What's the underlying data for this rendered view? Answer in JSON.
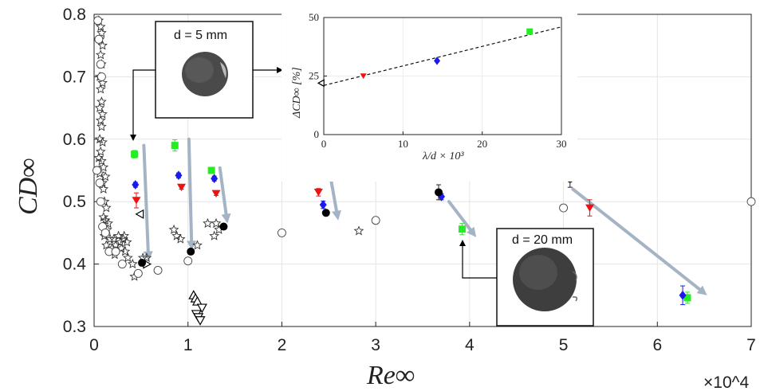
{
  "chart_data": [
    {
      "type": "scatter",
      "xlabel": "Re∞",
      "xscale_label": "×10^4",
      "ylabel": "CD∞",
      "xlim": [
        0,
        70000
      ],
      "ylim": [
        0.3,
        0.8
      ],
      "xticks": [
        0,
        10000,
        20000,
        30000,
        40000,
        50000,
        60000,
        70000
      ],
      "xtick_labels": [
        "0",
        "1",
        "2",
        "3",
        "4",
        "5",
        "6",
        "7"
      ],
      "yticks": [
        0.3,
        0.4,
        0.5,
        0.6,
        0.7,
        0.8
      ],
      "ytick_labels": [
        "0.3",
        "0.4",
        "0.5",
        "0.6",
        "0.7",
        "0.8"
      ],
      "grid": true,
      "colors": {
        "green": "#22ee22",
        "blue": "#1a1aee",
        "red": "#ee1111",
        "black": "#000000",
        "arrow": "#a4b4c4"
      },
      "series": [
        {
          "marker": "star",
          "points": [
            [
              500,
              0.79
            ],
            [
              700,
              0.78
            ],
            [
              800,
              0.77
            ],
            [
              600,
              0.76
            ],
            [
              900,
              0.75
            ],
            [
              700,
              0.735
            ],
            [
              800,
              0.72
            ],
            [
              600,
              0.7
            ],
            [
              900,
              0.69
            ],
            [
              700,
              0.68
            ],
            [
              800,
              0.66
            ],
            [
              600,
              0.65
            ],
            [
              900,
              0.64
            ],
            [
              700,
              0.63
            ],
            [
              800,
              0.62
            ],
            [
              600,
              0.6
            ],
            [
              900,
              0.595
            ],
            [
              700,
              0.58
            ],
            [
              500,
              0.57
            ],
            [
              800,
              0.565
            ],
            [
              1000,
              0.555
            ],
            [
              600,
              0.545
            ],
            [
              1200,
              0.54
            ],
            [
              900,
              0.53
            ],
            [
              1000,
              0.52
            ],
            [
              1100,
              0.5
            ],
            [
              1300,
              0.49
            ],
            [
              1000,
              0.475
            ],
            [
              1200,
              0.47
            ],
            [
              1500,
              0.465
            ],
            [
              1400,
              0.455
            ],
            [
              1100,
              0.445
            ],
            [
              1700,
              0.44
            ],
            [
              1300,
              0.43
            ],
            [
              2300,
              0.43
            ],
            [
              2100,
              0.44
            ],
            [
              2600,
              0.445
            ],
            [
              3100,
              0.44
            ],
            [
              2800,
              0.435
            ],
            [
              3200,
              0.445
            ],
            [
              3500,
              0.435
            ],
            [
              2900,
              0.425
            ],
            [
              3300,
              0.42
            ],
            [
              1900,
              0.425
            ],
            [
              3600,
              0.41
            ],
            [
              2200,
              0.415
            ],
            [
              4100,
              0.4
            ],
            [
              5200,
              0.41
            ],
            [
              5600,
              0.41
            ],
            [
              4300,
              0.38
            ],
            [
              8500,
              0.455
            ],
            [
              8800,
              0.445
            ],
            [
              9200,
              0.44
            ],
            [
              11000,
              0.43
            ],
            [
              12100,
              0.465
            ],
            [
              13000,
              0.465
            ],
            [
              12800,
              0.445
            ],
            [
              13300,
              0.455
            ],
            [
              28200,
              0.453
            ]
          ]
        },
        {
          "marker": "circle",
          "points": [
            [
              400,
              0.79
            ],
            [
              500,
              0.76
            ],
            [
              700,
              0.72
            ],
            [
              800,
              0.7
            ],
            [
              300,
              0.55
            ],
            [
              600,
              0.53
            ],
            [
              700,
              0.5
            ],
            [
              900,
              0.46
            ],
            [
              1200,
              0.45
            ],
            [
              1600,
              0.42
            ],
            [
              2300,
              0.42
            ],
            [
              3000,
              0.4
            ],
            [
              4700,
              0.385
            ],
            [
              6800,
              0.39
            ],
            [
              10000,
              0.405
            ],
            [
              20000,
              0.45
            ],
            [
              30000,
              0.47
            ],
            [
              50000,
              0.49
            ],
            [
              70000,
              0.5
            ]
          ]
        },
        {
          "marker": "triangle-right-open",
          "points": [
            [
              5600,
              0.4
            ]
          ]
        },
        {
          "marker": "triangle-left-open",
          "points": [
            [
              4900,
              0.48
            ]
          ]
        },
        {
          "marker": "triangle-up-open",
          "points": [
            [
              10600,
              0.35
            ],
            [
              10800,
              0.345
            ],
            [
              11000,
              0.34
            ]
          ]
        },
        {
          "marker": "triangle-down-open",
          "points": [
            [
              10900,
              0.32
            ],
            [
              11100,
              0.315
            ],
            [
              11300,
              0.31
            ],
            [
              11500,
              0.33
            ]
          ]
        },
        {
          "marker": "square-green",
          "points": [
            [
              4300,
              0.576,
              0.006
            ],
            [
              8600,
              0.59,
              0.009
            ],
            [
              12500,
              0.55,
              0.003
            ],
            [
              23500,
              0.546,
              0.008
            ],
            [
              39200,
              0.456,
              0.009
            ],
            [
              63200,
              0.346,
              0.009
            ]
          ]
        },
        {
          "marker": "diamond-blue",
          "points": [
            [
              4400,
              0.527,
              0.004
            ],
            [
              9000,
              0.542,
              0.004
            ],
            [
              12800,
              0.537,
              0.004
            ],
            [
              24400,
              0.495,
              0.006
            ],
            [
              37000,
              0.508,
              0.005
            ],
            [
              62700,
              0.35,
              0.015
            ]
          ]
        },
        {
          "marker": "triangle-down-red",
          "points": [
            [
              4500,
              0.502,
              0.012
            ],
            [
              9300,
              0.523,
              0.003
            ],
            [
              13000,
              0.513,
              0.003
            ],
            [
              23900,
              0.515,
              0.006
            ],
            [
              52800,
              0.49,
              0.013
            ]
          ]
        },
        {
          "marker": "circle-black",
          "points": [
            [
              5100,
              0.402,
              0.005
            ],
            [
              10300,
              0.42,
              0.003
            ],
            [
              13800,
              0.46,
              0.003
            ],
            [
              24700,
              0.482,
              0.004
            ],
            [
              36700,
              0.515,
              0.012
            ],
            [
              50700,
              0.537,
              0.014
            ]
          ]
        }
      ],
      "arrows": [
        [
          [
            5300,
            0.59
          ],
          [
            5800,
            0.405
          ]
        ],
        [
          [
            10100,
            0.6
          ],
          [
            10400,
            0.422
          ]
        ],
        [
          [
            13400,
            0.554
          ],
          [
            14200,
            0.465
          ]
        ],
        [
          [
            25000,
            0.555
          ],
          [
            26000,
            0.47
          ]
        ],
        [
          [
            37800,
            0.5
          ],
          [
            40700,
            0.443
          ]
        ],
        [
          [
            51000,
            0.52
          ],
          [
            65300,
            0.35
          ]
        ]
      ],
      "annotations": [
        {
          "label": "d = 5 mm",
          "points_to": [
            4200,
            0.585
          ]
        },
        {
          "label": "d = 20 mm",
          "points_to": [
            39200,
            0.449
          ]
        }
      ]
    },
    {
      "type": "scatter",
      "inset": true,
      "xlabel": "λ/d × 10³",
      "ylabel": "ΔCD∞ [%]",
      "xlim": [
        0,
        30
      ],
      "ylim": [
        0,
        50
      ],
      "xticks": [
        0,
        10,
        20,
        30
      ],
      "yticks": [
        0,
        25,
        50
      ],
      "xtick_labels": [
        "0",
        "10",
        "20",
        "30"
      ],
      "ytick_labels": [
        "0",
        "25",
        "50"
      ],
      "series": [
        {
          "marker": "triangle-left-open",
          "points": [
            [
              0,
              22
            ]
          ]
        },
        {
          "marker": "triangle-down-red",
          "points": [
            [
              5,
              25
            ]
          ]
        },
        {
          "marker": "diamond-blue",
          "points": [
            [
              14.3,
              31.5
            ]
          ]
        },
        {
          "marker": "square-green",
          "points": [
            [
              26,
              44
            ]
          ]
        }
      ],
      "fit_line": [
        [
          0,
          21
        ],
        [
          30,
          46
        ]
      ]
    }
  ]
}
